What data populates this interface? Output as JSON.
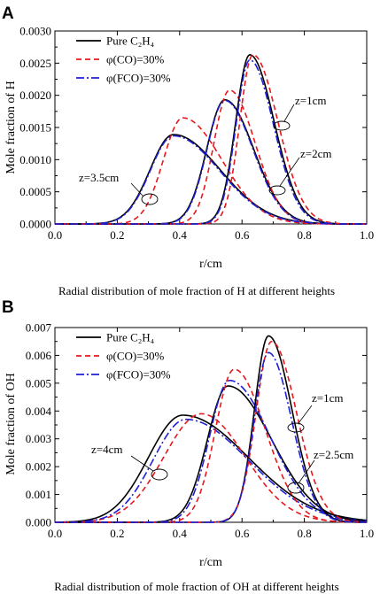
{
  "chart_data": [
    {
      "panel_label": "A",
      "type": "line",
      "ylabel": "Mole fraction of H",
      "xlabel": "r/cm",
      "caption": "Radial distribution of mole fraction of H at different heights",
      "xlim": [
        0.0,
        1.0
      ],
      "ylim": [
        0.0,
        0.003
      ],
      "x_ticks": [
        "0.0",
        "0.2",
        "0.4",
        "0.6",
        "0.8",
        "1.0"
      ],
      "y_ticks": [
        "0.0000",
        "0.0005",
        "0.0010",
        "0.0015",
        "0.0020",
        "0.0025",
        "0.0030"
      ],
      "legend": [
        "Pure C₂H₄",
        "φ(CO)=30%",
        "φ(FCO)=30%"
      ],
      "annotations": [
        "z=1cm",
        "z=2cm",
        "z=3.5cm"
      ],
      "series": [
        {
          "name": "Pure C₂H₄",
          "height": "z=3.5cm",
          "style": "solid",
          "color": "#000000",
          "peak_x": 0.38,
          "peak_y": 0.00139,
          "sigma_left": 0.075,
          "sigma_right": 0.15
        },
        {
          "name": "φ(CO)=30%",
          "height": "z=3.5cm",
          "style": "dash",
          "color": "#e8171d",
          "peak_x": 0.41,
          "peak_y": 0.00165,
          "sigma_left": 0.062,
          "sigma_right": 0.125
        },
        {
          "name": "φ(FCO)=30%",
          "height": "z=3.5cm",
          "style": "dashdot",
          "color": "#1f1fd6",
          "peak_x": 0.38,
          "peak_y": 0.00137,
          "sigma_left": 0.074,
          "sigma_right": 0.148
        },
        {
          "name": "Pure C₂H₄",
          "height": "z=2cm",
          "style": "solid",
          "color": "#000000",
          "peak_x": 0.545,
          "peak_y": 0.00193,
          "sigma_left": 0.058,
          "sigma_right": 0.092
        },
        {
          "name": "φ(CO)=30%",
          "height": "z=2cm",
          "style": "dash",
          "color": "#e8171d",
          "peak_x": 0.56,
          "peak_y": 0.00208,
          "sigma_left": 0.05,
          "sigma_right": 0.082
        },
        {
          "name": "φ(FCO)=30%",
          "height": "z=2cm",
          "style": "dashdot",
          "color": "#1f1fd6",
          "peak_x": 0.545,
          "peak_y": 0.00192,
          "sigma_left": 0.057,
          "sigma_right": 0.09
        },
        {
          "name": "Pure C₂H₄",
          "height": "z=1cm",
          "style": "solid",
          "color": "#000000",
          "peak_x": 0.625,
          "peak_y": 0.00263,
          "sigma_left": 0.045,
          "sigma_right": 0.078
        },
        {
          "name": "φ(CO)=30%",
          "height": "z=1cm",
          "style": "dash",
          "color": "#e8171d",
          "peak_x": 0.635,
          "peak_y": 0.00263,
          "sigma_left": 0.042,
          "sigma_right": 0.08
        },
        {
          "name": "φ(FCO)=30%",
          "height": "z=1cm",
          "style": "dashdot",
          "color": "#1f1fd6",
          "peak_x": 0.625,
          "peak_y": 0.00255,
          "sigma_left": 0.044,
          "sigma_right": 0.076
        }
      ]
    },
    {
      "panel_label": "B",
      "type": "line",
      "ylabel": "Mole fraction of OH",
      "xlabel": "r/cm",
      "caption": "Radial distribution of mole fraction of OH at different heights",
      "xlim": [
        0.0,
        1.0
      ],
      "ylim": [
        0.0,
        0.007
      ],
      "x_ticks": [
        "0.0",
        "0.2",
        "0.4",
        "0.6",
        "0.8",
        "1.0"
      ],
      "y_ticks": [
        "0.000",
        "0.001",
        "0.002",
        "0.003",
        "0.004",
        "0.005",
        "0.006",
        "0.007"
      ],
      "legend": [
        "Pure C₂H₄",
        "φ(CO)=30%",
        "φ(FCO)=30%"
      ],
      "annotations": [
        "z=1cm",
        "z=2.5cm",
        "z=4cm"
      ],
      "series": [
        {
          "name": "Pure C₂H₄",
          "height": "z=4cm",
          "style": "solid",
          "color": "#000000",
          "peak_x": 0.41,
          "peak_y": 0.00385,
          "sigma_left": 0.11,
          "sigma_right": 0.21
        },
        {
          "name": "φ(CO)=30%",
          "height": "z=4cm",
          "style": "dash",
          "color": "#e8171d",
          "peak_x": 0.47,
          "peak_y": 0.0039,
          "sigma_left": 0.12,
          "sigma_right": 0.14
        },
        {
          "name": "φ(FCO)=30%",
          "height": "z=4cm",
          "style": "dashdot",
          "color": "#1f1fd6",
          "peak_x": 0.42,
          "peak_y": 0.0037,
          "sigma_left": 0.105,
          "sigma_right": 0.2
        },
        {
          "name": "Pure C₂H₄",
          "height": "z=2.5cm",
          "style": "solid",
          "color": "#000000",
          "peak_x": 0.555,
          "peak_y": 0.0049,
          "sigma_left": 0.066,
          "sigma_right": 0.14
        },
        {
          "name": "φ(CO)=30%",
          "height": "z=2.5cm",
          "style": "dash",
          "color": "#e8171d",
          "peak_x": 0.575,
          "peak_y": 0.0055,
          "sigma_left": 0.06,
          "sigma_right": 0.1
        },
        {
          "name": "φ(FCO)=30%",
          "height": "z=2.5cm",
          "style": "dashdot",
          "color": "#1f1fd6",
          "peak_x": 0.56,
          "peak_y": 0.0051,
          "sigma_left": 0.064,
          "sigma_right": 0.13
        },
        {
          "name": "Pure C₂H₄",
          "height": "z=1cm",
          "style": "solid",
          "color": "#000000",
          "peak_x": 0.685,
          "peak_y": 0.0067,
          "sigma_left": 0.045,
          "sigma_right": 0.075
        },
        {
          "name": "φ(CO)=30%",
          "height": "z=1cm",
          "style": "dash",
          "color": "#e8171d",
          "peak_x": 0.695,
          "peak_y": 0.0065,
          "sigma_left": 0.05,
          "sigma_right": 0.08
        },
        {
          "name": "φ(FCO)=30%",
          "height": "z=1cm",
          "style": "dashdot",
          "color": "#1f1fd6",
          "peak_x": 0.685,
          "peak_y": 0.0061,
          "sigma_left": 0.046,
          "sigma_right": 0.074
        }
      ]
    }
  ]
}
